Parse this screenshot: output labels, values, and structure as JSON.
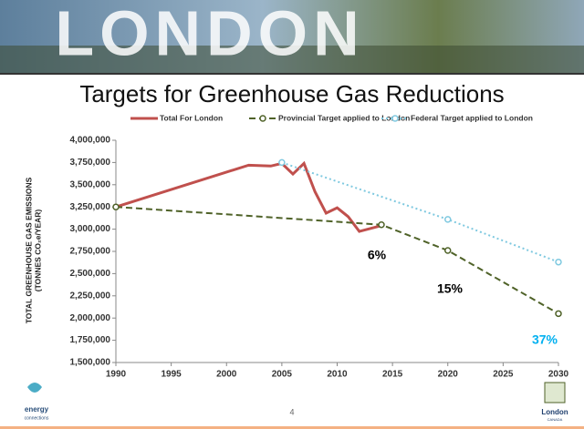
{
  "banner_text": "LONDON",
  "page_number": "4",
  "logo_left": {
    "line1": "energy",
    "line2": "connections"
  },
  "logo_right": {
    "line1": "London",
    "line2": "CANADA"
  },
  "chart_data": {
    "type": "line",
    "title": "Targets for Greenhouse Gas Reductions",
    "y_label": [
      "TOTAL GREENHOUSE GAS EMISSIONS",
      "(TONNES CO₂e/YEAR)"
    ],
    "xlim": [
      1990,
      2030
    ],
    "xticks": [
      1990,
      1995,
      2000,
      2005,
      2010,
      2015,
      2020,
      2025,
      2030
    ],
    "ylim": [
      1500000,
      4000000
    ],
    "yticks": [
      {
        "value": 1500000,
        "label": "1,500,000"
      },
      {
        "value": 1750000,
        "label": "1,750,000"
      },
      {
        "value": 2000000,
        "label": "2,000,000"
      },
      {
        "value": 2250000,
        "label": "2,250,000"
      },
      {
        "value": 2500000,
        "label": "2,500,000"
      },
      {
        "value": 2750000,
        "label": "2,750,000"
      },
      {
        "value": 3000000,
        "label": "3,000,000"
      },
      {
        "value": 3250000,
        "label": "3,250,000"
      },
      {
        "value": 3500000,
        "label": "3,500,000"
      },
      {
        "value": 3750000,
        "label": "3,750,000"
      },
      {
        "value": 4000000,
        "label": "4,000,000"
      }
    ],
    "legend": "top",
    "series": [
      {
        "name": "Total For London",
        "color": "#c0504d",
        "linestyle": "solid",
        "marker": false,
        "x": [
          1990,
          2002,
          2004,
          2005,
          2006,
          2007,
          2008,
          2009,
          2010,
          2011,
          2012,
          2014
        ],
        "values": [
          3250000,
          3720000,
          3710000,
          3740000,
          3620000,
          3740000,
          3420000,
          3180000,
          3240000,
          3140000,
          2975000,
          3040000
        ]
      },
      {
        "name": "Provincial Target applied to London",
        "color": "#4f6228",
        "linestyle": "dashed",
        "marker": true,
        "x": [
          1990,
          2014,
          2020,
          2030
        ],
        "values": [
          3250000,
          3050000,
          2760000,
          2050000
        ]
      },
      {
        "name": "Federal Target applied to London",
        "color": "#7fc9e0",
        "linestyle": "dotted",
        "marker": true,
        "x": [
          2005,
          2020,
          2030
        ],
        "values": [
          3750000,
          3110000,
          2630000
        ]
      }
    ],
    "annotations": [
      {
        "text": "6%",
        "color": "#000000"
      },
      {
        "text": "15%",
        "color": "#000000"
      },
      {
        "text": "37%",
        "color": "#00b0f0"
      }
    ]
  }
}
